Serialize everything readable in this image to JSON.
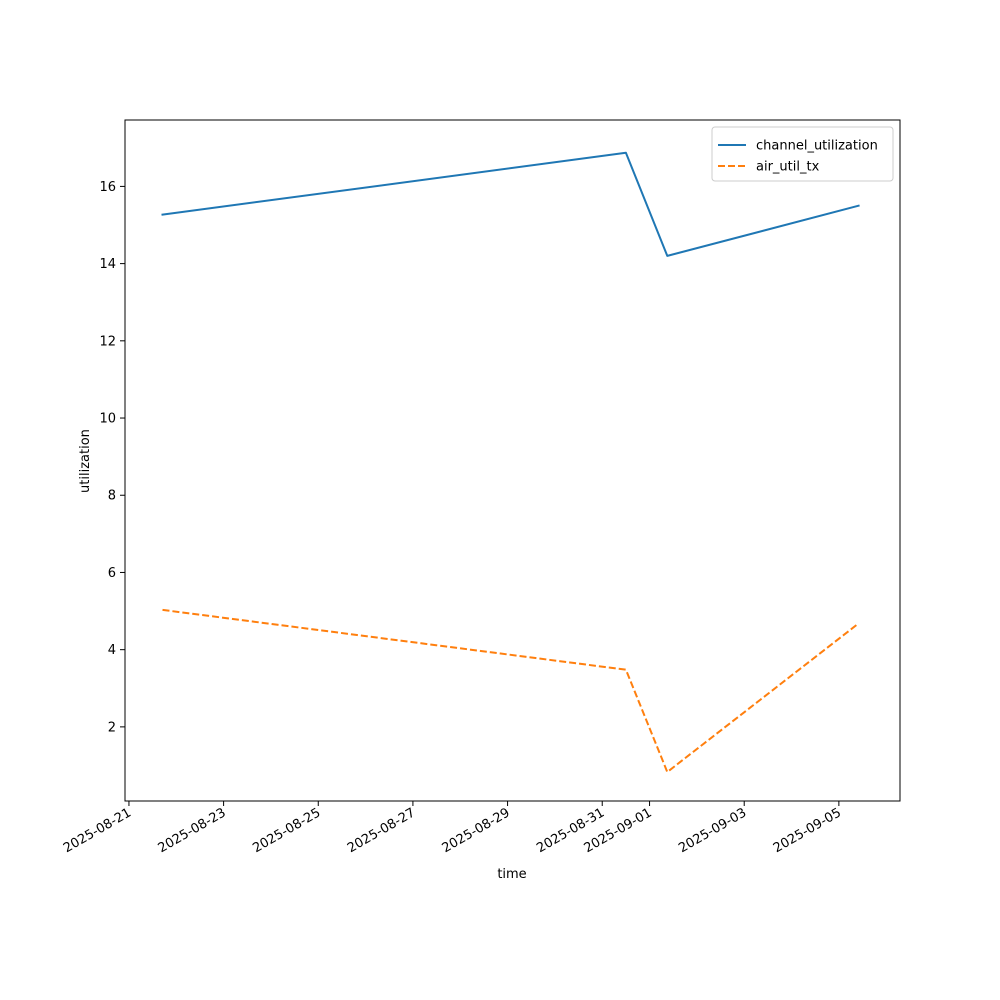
{
  "chart_data": {
    "type": "line",
    "title": "",
    "xlabel": "time",
    "ylabel": "utilization",
    "x_type": "date",
    "xlim": [
      "2025-08-20T22:00",
      "2025-09-06T07:00"
    ],
    "ylim": [
      0.08,
      17.72
    ],
    "x_ticks": [
      "2025-08-21",
      "2025-08-23",
      "2025-08-25",
      "2025-08-27",
      "2025-08-29",
      "2025-08-31",
      "2025-09-01",
      "2025-09-03",
      "2025-09-05"
    ],
    "y_ticks": [
      2,
      4,
      6,
      8,
      10,
      12,
      14,
      16
    ],
    "grid": false,
    "legend_position": "top-right",
    "series": [
      {
        "name": "channel_utilization",
        "color": "#1f77b4",
        "style": "solid",
        "points": [
          {
            "x": "2025-08-21T17:00",
            "y": 15.27
          },
          {
            "x": "2025-08-31T12:00",
            "y": 16.87
          },
          {
            "x": "2025-09-01T09:00",
            "y": 14.2
          },
          {
            "x": "2025-09-05T10:00",
            "y": 15.5
          }
        ]
      },
      {
        "name": "air_util_tx",
        "color": "#ff7f0e",
        "style": "dashed",
        "points": [
          {
            "x": "2025-08-21T17:00",
            "y": 5.03
          },
          {
            "x": "2025-08-31T12:00",
            "y": 3.48
          },
          {
            "x": "2025-09-01T09:00",
            "y": 0.83
          },
          {
            "x": "2025-09-05T10:00",
            "y": 4.68
          }
        ]
      }
    ]
  }
}
